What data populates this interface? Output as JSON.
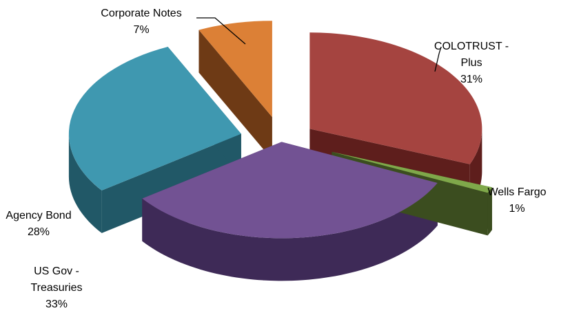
{
  "chart_data": {
    "type": "pie",
    "style": "3d-exploded",
    "legend": "none",
    "slices": [
      {
        "key": "colotrust",
        "name_lines": [
          "COLOTRUST -",
          "Plus"
        ],
        "value": 31,
        "pct_label": "31%",
        "color": "#a54440",
        "side_color": "#5e1e1c"
      },
      {
        "key": "wells_fargo",
        "name_lines": [
          "Wells Fargo"
        ],
        "value": 1,
        "pct_label": "1%",
        "color": "#7fa84a",
        "side_color": "#3b4d1f"
      },
      {
        "key": "us_gov",
        "name_lines": [
          "US Gov -",
          "Treasuries"
        ],
        "value": 33,
        "pct_label": "33%",
        "color": "#725293",
        "side_color": "#3e2a57"
      },
      {
        "key": "agency_bond",
        "name_lines": [
          "Agency Bond"
        ],
        "value": 28,
        "pct_label": "28%",
        "color": "#3f98b0",
        "side_color": "#215867"
      },
      {
        "key": "corporate_notes",
        "name_lines": [
          "Corporate Notes"
        ],
        "value": 7,
        "pct_label": "7%",
        "color": "#dc8036",
        "side_color": "#6e3a15"
      }
    ]
  }
}
